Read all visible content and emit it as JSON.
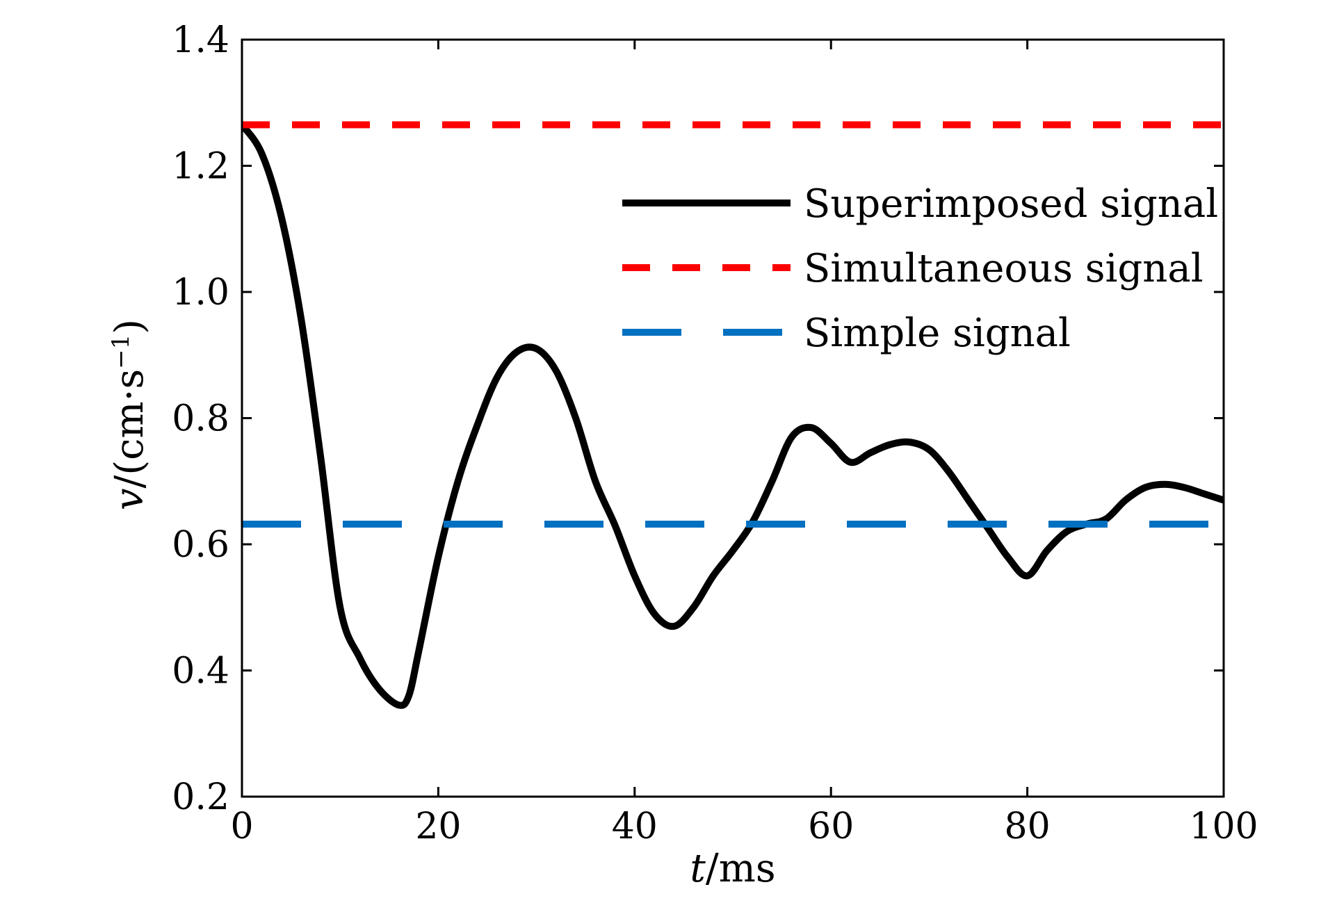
{
  "chart_data": {
    "type": "line",
    "xlabel": {
      "symbol": "t",
      "unit": "/ms"
    },
    "ylabel": {
      "symbol": "v",
      "unit": "/(cm·s",
      "exponent": "−1",
      "close": ")"
    },
    "xlim": [
      0,
      100
    ],
    "ylim": [
      0.2,
      1.4
    ],
    "x_ticks": [
      "0",
      "20",
      "40",
      "60",
      "80",
      "100"
    ],
    "y_ticks": [
      "0.2",
      "0.4",
      "0.6",
      "0.8",
      "1.0",
      "1.2",
      "1.4"
    ],
    "grid": false,
    "legend_position": "upper-right",
    "series": [
      {
        "name": "Superimposed signal",
        "style": "solid",
        "color": "#000000",
        "x": [
          0,
          2,
          4,
          6,
          8,
          10,
          12,
          14,
          16,
          17,
          18,
          20,
          22,
          24,
          26,
          28,
          30,
          32,
          34,
          36,
          38,
          40,
          42,
          44,
          46,
          48,
          50,
          52,
          54,
          56,
          58,
          60,
          62,
          64,
          66,
          68,
          70,
          72,
          74,
          76,
          78,
          80,
          82,
          84,
          86,
          88,
          90,
          92,
          94,
          96,
          98,
          100
        ],
        "y": [
          1.265,
          1.22,
          1.12,
          0.96,
          0.74,
          0.5,
          0.42,
          0.37,
          0.345,
          0.36,
          0.43,
          0.58,
          0.7,
          0.79,
          0.865,
          0.905,
          0.91,
          0.875,
          0.8,
          0.7,
          0.63,
          0.55,
          0.49,
          0.47,
          0.5,
          0.55,
          0.59,
          0.635,
          0.7,
          0.77,
          0.785,
          0.76,
          0.73,
          0.745,
          0.758,
          0.762,
          0.75,
          0.715,
          0.67,
          0.625,
          0.58,
          0.55,
          0.59,
          0.62,
          0.632,
          0.64,
          0.67,
          0.69,
          0.695,
          0.69,
          0.68,
          0.67
        ]
      },
      {
        "name": "Simultaneous signal",
        "style": "dashed",
        "color": "#ff0000",
        "x": [
          0,
          100
        ],
        "y": [
          1.265,
          1.265
        ]
      },
      {
        "name": "Simple signal",
        "style": "long-dashed",
        "color": "#0070c0",
        "x": [
          0,
          100
        ],
        "y": [
          0.632,
          0.632
        ]
      }
    ]
  }
}
